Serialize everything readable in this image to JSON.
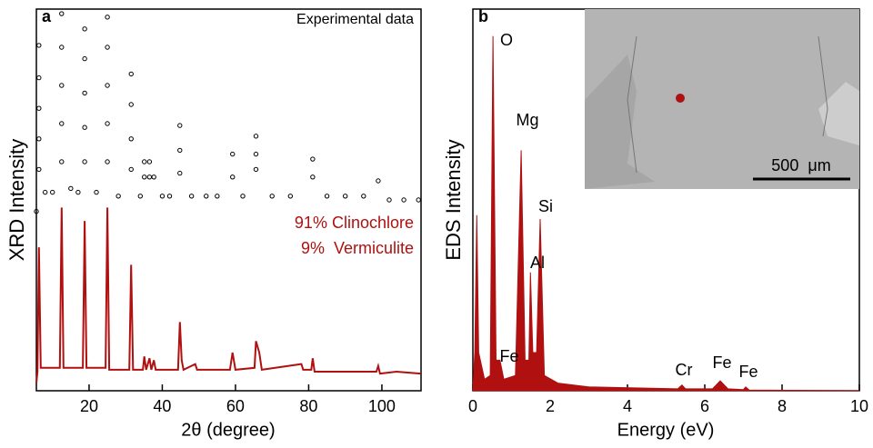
{
  "chart_data": [
    {
      "type": "line",
      "panel": "a",
      "xlabel": "2θ (degree)",
      "ylabel": "XRD Intensity",
      "xlim": [
        5.6,
        110.7
      ],
      "ylim": [
        0,
        100
      ],
      "xticks": [
        20,
        40,
        60,
        80,
        100
      ],
      "annotations": [
        "91% Clinochlore",
        "9%  Vermiculite"
      ],
      "series": [
        {
          "name": "Experimental data",
          "color": "#000000",
          "marker": "circle",
          "x": [
            5.6,
            8,
            10,
            15,
            17,
            22,
            28,
            34,
            40,
            42,
            48,
            52,
            55,
            62,
            70,
            75,
            85,
            90,
            95,
            102,
            106,
            110,
            6.3,
            6.3,
            6.3,
            6.3,
            6.3,
            12.5,
            12.5,
            12.5,
            12.5,
            12.5,
            18.8,
            18.8,
            18.8,
            18.8,
            18.8,
            25,
            25,
            25,
            25,
            25,
            31.5,
            31.5,
            31.5,
            31.5,
            35.1,
            35.1,
            36.5,
            36.5,
            37.7,
            44.8,
            44.8,
            44.8,
            59.2,
            59.2,
            65.6,
            65.6,
            65.6,
            81.1,
            81.1,
            99
          ],
          "values": [
            47,
            52,
            52,
            53,
            52,
            52,
            51,
            51,
            51,
            51,
            51,
            51,
            51,
            51,
            51,
            51,
            51,
            51,
            51,
            50,
            50,
            50,
            58,
            66,
            74,
            82,
            90.5,
            60,
            70,
            80,
            90,
            98.8,
            60,
            69,
            78,
            87,
            94.8,
            60,
            70,
            80,
            90,
            97.9,
            58,
            66,
            75,
            83,
            56,
            60,
            56,
            60,
            56,
            57,
            63,
            69.5,
            56,
            62,
            58,
            62,
            66.7,
            56,
            60.7,
            55
          ]
        },
        {
          "color": "#b01010",
          "x": [
            5.6,
            5.9,
            6.3,
            6.8,
            12,
            12.5,
            13,
            18.3,
            18.8,
            19.3,
            24.5,
            25,
            25.5,
            31,
            31.5,
            32,
            34.7,
            35.1,
            35.6,
            36.5,
            37,
            37.7,
            38.2,
            44.3,
            44.8,
            45.3,
            45.8,
            49,
            49.5,
            58.5,
            59.2,
            60,
            65.2,
            65.6,
            66.5,
            67.2,
            78,
            78.5,
            80.7,
            81.1,
            81.6,
            98.5,
            99,
            99.5,
            104,
            110.5
          ],
          "values": [
            2,
            5,
            37.6,
            6,
            6,
            48,
            6,
            6,
            44.5,
            6,
            6,
            48,
            5.5,
            5.5,
            33,
            5.5,
            5.5,
            9,
            5.5,
            8.5,
            5.5,
            8,
            5.5,
            5.5,
            18,
            8,
            5.5,
            7,
            5.5,
            5.5,
            10,
            5.5,
            6,
            13,
            10,
            5.5,
            7,
            5.5,
            5.5,
            8.5,
            5,
            5,
            6.5,
            4.5,
            5,
            4.5
          ]
        }
      ]
    },
    {
      "type": "area",
      "panel": "b",
      "xlabel": "Energy (eV)",
      "ylabel": "EDS Intensity",
      "xlim": [
        0,
        10
      ],
      "ylim": [
        0,
        100
      ],
      "xticks": [
        0,
        2,
        4,
        6,
        8,
        10
      ],
      "color": "#b01010",
      "peak_labels": [
        "O",
        "Mg",
        "Si",
        "Al",
        "Fe",
        "Cr",
        "Fe",
        "Fe"
      ],
      "scale_bar": "500  μm",
      "x": [
        0,
        0.05,
        0.1,
        0.15,
        0.3,
        0.45,
        0.52,
        0.6,
        0.7,
        0.8,
        1.1,
        1.25,
        1.35,
        1.45,
        1.49,
        1.55,
        1.65,
        1.74,
        1.85,
        2.2,
        3,
        5.3,
        5.41,
        5.5,
        6.2,
        6.4,
        6.6,
        7.0,
        7.06,
        7.15,
        10
      ],
      "values": [
        0,
        10,
        46,
        10,
        3,
        4,
        92.9,
        8,
        8,
        3,
        4,
        63,
        8,
        8,
        31,
        10,
        10,
        45,
        4,
        2,
        1,
        0.5,
        1.5,
        0.5,
        0.5,
        2.6,
        0.5,
        0.3,
        1,
        0.2,
        0
      ]
    }
  ]
}
